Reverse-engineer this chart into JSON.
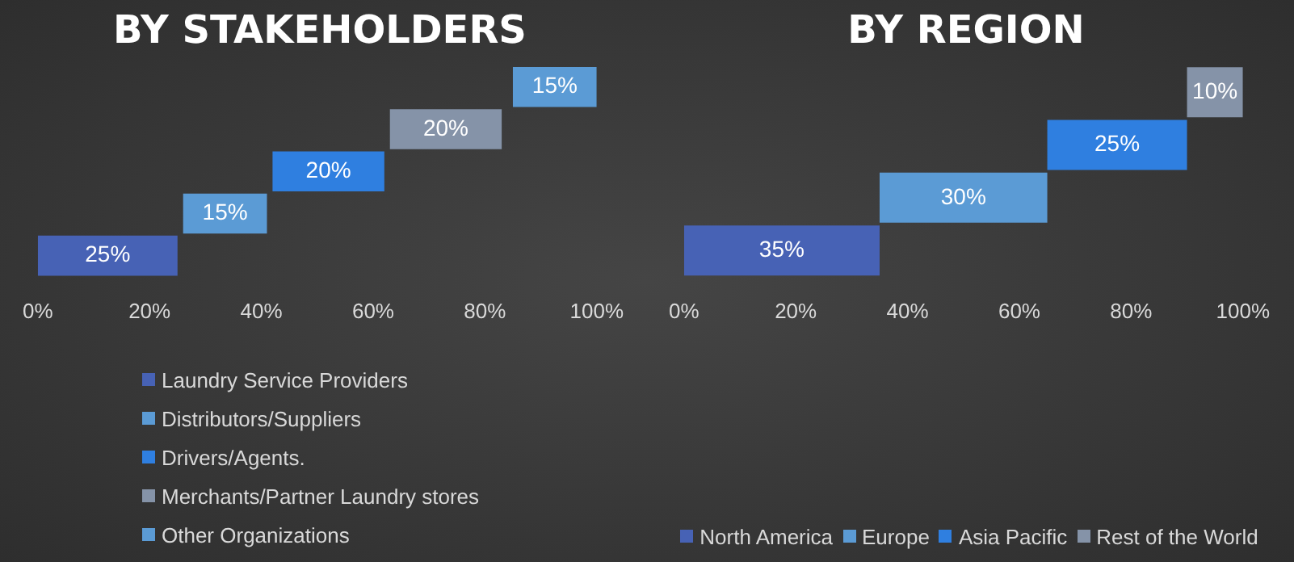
{
  "chart_data": [
    {
      "type": "bar",
      "title": "BY STAKEHOLDERS",
      "orientation": "horizontal",
      "categories": [
        null,
        null,
        null,
        null,
        null
      ],
      "values": [
        15,
        20,
        20,
        15,
        25
      ],
      "base": [
        85,
        63,
        42,
        26,
        0
      ],
      "colors": [
        "#5b9bd5",
        "#8593a8",
        "#2f7fe0",
        "#5b9bd5",
        "#4762b5"
      ],
      "value_labels": [
        "15%",
        "20%",
        "20%",
        "15%",
        "25%"
      ],
      "xlim": [
        0,
        100
      ],
      "xticks": [
        {
          "value": 0,
          "label": "0%"
        },
        {
          "value": 20,
          "label": "20%"
        },
        {
          "value": 40,
          "label": "40%"
        },
        {
          "value": 60,
          "label": "60%"
        },
        {
          "value": 80,
          "label": "80%"
        },
        {
          "value": 100,
          "label": "100%"
        }
      ],
      "grid": false,
      "tick_labels": "x",
      "annotations": [
        "Laundry Service Providers",
        "Distributors/Suppliers",
        "Drivers/Agents.",
        "Merchants/Partner Laundry stores",
        "Other Organizations"
      ]
    },
    {
      "type": "bar",
      "title": "BY REGION",
      "orientation": "horizontal",
      "categories": [
        null,
        null,
        null,
        null
      ],
      "values": [
        10,
        25,
        30,
        35
      ],
      "base": [
        90,
        65,
        35,
        0
      ],
      "colors": [
        "#8593a8",
        "#2f7fe0",
        "#5b9bd5",
        "#4762b5"
      ],
      "value_labels": [
        "10%",
        "25%",
        "30%",
        "35%"
      ],
      "xlim": [
        0,
        100
      ],
      "xticks": [
        {
          "value": 0,
          "label": "0%"
        },
        {
          "value": 20,
          "label": "20%"
        },
        {
          "value": 40,
          "label": "40%"
        },
        {
          "value": 60,
          "label": "60%"
        },
        {
          "value": 80,
          "label": "80%"
        },
        {
          "value": 100,
          "label": "100%"
        }
      ],
      "grid": false,
      "tick_labels": "x",
      "annotations": [
        "North America",
        "Europe",
        "Asia Pacific",
        "Rest of the World"
      ]
    }
  ]
}
